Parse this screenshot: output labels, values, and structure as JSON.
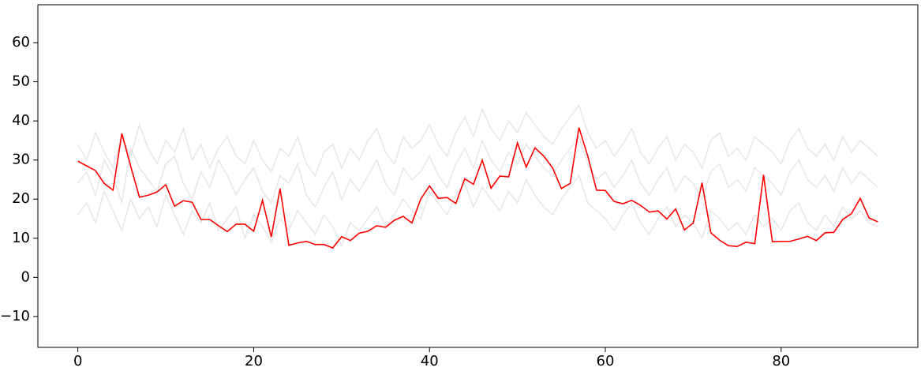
{
  "chart_data": {
    "type": "line",
    "x": [
      0,
      1,
      2,
      3,
      4,
      5,
      6,
      7,
      8,
      9,
      10,
      11,
      12,
      13,
      14,
      15,
      16,
      17,
      18,
      19,
      20,
      21,
      22,
      23,
      24,
      25,
      26,
      27,
      28,
      29,
      30,
      31,
      32,
      33,
      34,
      35,
      36,
      37,
      38,
      39,
      40,
      41,
      42,
      43,
      44,
      45,
      46,
      47,
      48,
      49,
      50,
      51,
      52,
      53,
      54,
      55,
      56,
      57,
      58,
      59,
      60,
      61,
      62,
      63,
      64,
      65,
      66,
      67,
      68,
      69,
      70,
      71,
      72,
      73,
      74,
      75,
      76,
      77,
      78,
      79,
      80,
      81,
      82,
      83,
      84,
      85,
      86,
      87,
      88,
      89,
      90,
      91
    ],
    "series": [
      {
        "color": "#808080",
        "alpha": 0.18,
        "values": [
          24,
          27,
          21,
          30,
          26,
          19,
          33,
          28,
          25,
          22,
          29,
          31,
          24,
          20,
          27,
          23,
          30,
          26,
          21,
          25,
          28,
          22,
          19,
          26,
          24,
          29,
          21,
          18,
          23,
          27,
          20,
          25,
          22,
          26,
          30,
          24,
          21,
          28,
          25,
          27,
          31,
          26,
          23,
          29,
          33,
          28,
          35,
          30,
          27,
          32,
          29,
          34,
          31,
          28,
          26,
          30,
          33,
          36,
          29,
          25,
          27,
          23,
          26,
          30,
          24,
          21,
          25,
          28,
          22,
          26,
          24,
          20,
          27,
          29,
          23,
          25,
          22,
          28,
          26,
          24,
          21,
          27,
          30,
          25,
          23,
          26,
          22,
          28,
          24,
          27,
          25,
          23
        ]
      },
      {
        "color": "#808080",
        "alpha": 0.18,
        "values": [
          16,
          19,
          14,
          22,
          17,
          12,
          20,
          15,
          18,
          13,
          21,
          16,
          11,
          17,
          14,
          19,
          12,
          15,
          18,
          10,
          16,
          13,
          9,
          15,
          12,
          17,
          14,
          11,
          16,
          13,
          8,
          14,
          12,
          15,
          18,
          13,
          16,
          20,
          17,
          15,
          22,
          19,
          16,
          21,
          24,
          18,
          23,
          20,
          17,
          22,
          19,
          25,
          21,
          18,
          16,
          20,
          23,
          26,
          19,
          17,
          15,
          12,
          16,
          19,
          14,
          11,
          15,
          18,
          13,
          16,
          14,
          10,
          17,
          15,
          12,
          14,
          11,
          16,
          13,
          15,
          12,
          17,
          19,
          14,
          12,
          16,
          13,
          18,
          15,
          17,
          14,
          13
        ]
      },
      {
        "color": "#808080",
        "alpha": 0.18,
        "values": [
          34,
          30,
          37,
          32,
          28,
          36,
          31,
          39,
          33,
          29,
          35,
          32,
          38,
          30,
          34,
          28,
          33,
          36,
          31,
          29,
          35,
          30,
          27,
          33,
          31,
          36,
          29,
          26,
          32,
          34,
          28,
          33,
          30,
          35,
          38,
          32,
          29,
          36,
          33,
          35,
          39,
          34,
          31,
          37,
          41,
          36,
          43,
          38,
          35,
          40,
          37,
          42,
          39,
          36,
          34,
          38,
          41,
          44,
          37,
          33,
          35,
          31,
          34,
          38,
          32,
          29,
          33,
          36,
          30,
          34,
          32,
          28,
          35,
          37,
          31,
          33,
          30,
          36,
          34,
          32,
          29,
          35,
          38,
          33,
          31,
          34,
          30,
          36,
          32,
          35,
          33,
          31
        ]
      },
      {
        "color": "#ff0000",
        "alpha": 1,
        "values": [
          29.7,
          28.5,
          27.3,
          24,
          22.3,
          36.8,
          28.5,
          20.5,
          21,
          21.8,
          23.7,
          18.2,
          19.6,
          19.2,
          14.8,
          14.8,
          13.2,
          11.7,
          13.6,
          13.6,
          11.8,
          19.7,
          10.3,
          22.7,
          8.2,
          8.8,
          9.2,
          8.4,
          8.4,
          7.5,
          10.4,
          9.4,
          11.3,
          11.8,
          13.2,
          12.8,
          14.6,
          15.6,
          13.9,
          20,
          23.4,
          20.2,
          20.4,
          18.9,
          25.2,
          23.8,
          30,
          22.8,
          25.9,
          25.7,
          34.4,
          28.2,
          33.1,
          31,
          28,
          22.7,
          24,
          38.3,
          31,
          22.3,
          22.2,
          19.4,
          18.8,
          19.7,
          18.4,
          16.7,
          17,
          14.9,
          17.5,
          12.1,
          13.9,
          24.2,
          11.4,
          9.5,
          8.1,
          7.9,
          9,
          8.6,
          26.2,
          9.1,
          9.2,
          9.2,
          9.8,
          10.5,
          9.4,
          11.4,
          11.5,
          14.8,
          16.3,
          20.2,
          15.2,
          14.2
        ]
      }
    ],
    "xlim": [
      -4.55,
      95.55
    ],
    "xticks": [
      0,
      20,
      40,
      60,
      80
    ],
    "ylim": [
      -17.9,
      69.7
    ],
    "yticks": [
      {
        "value": -10,
        "label": "−10"
      },
      0,
      10,
      20,
      30,
      40,
      50,
      60
    ]
  }
}
